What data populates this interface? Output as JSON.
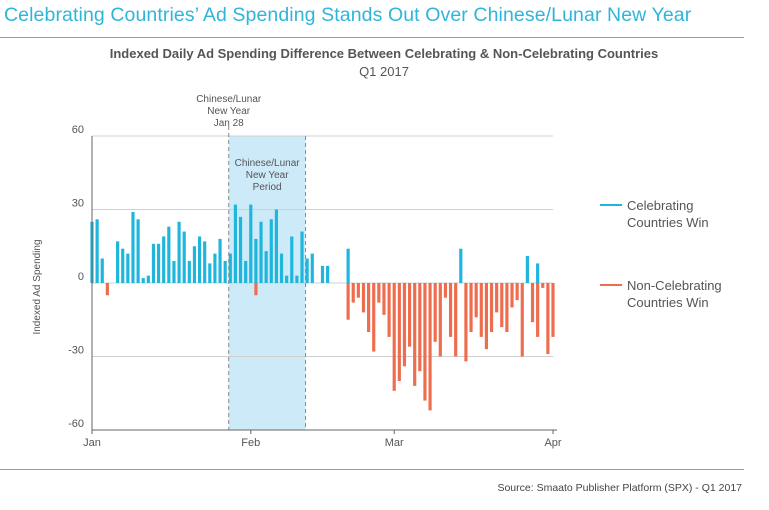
{
  "headline": "Celebrating Countries’ Ad Spending Stands Out Over Chinese/Lunar New Year",
  "source": "Source: Smaato Publisher Platform (SPX) - Q1 2017",
  "colors": {
    "celebrating": "#1eb6dc",
    "non_celebrating": "#ef6d4f",
    "highlight": "#cdeaf8",
    "headline": "#2fb5da"
  },
  "chart_data": {
    "type": "bar",
    "title": "Indexed Daily Ad Spending Difference Between Celebrating & Non-Celebrating Countries",
    "subtitle": "Q1 2017",
    "ylabel": "Indexed Ad Spending",
    "xlabel": "",
    "ylim": [
      -60,
      60
    ],
    "yticks": [
      60,
      30,
      0,
      -30,
      -60
    ],
    "grid": true,
    "x_tick_labels": [
      {
        "label": "Jan",
        "day": 1
      },
      {
        "label": "Feb",
        "day": 32
      },
      {
        "label": "Mar",
        "day": 60
      },
      {
        "label": "Apr",
        "day": 91
      }
    ],
    "legend_position": "right",
    "series": [
      {
        "name": "Celebrating Countries Win",
        "days": [
          1,
          2,
          3,
          4,
          6,
          7,
          8,
          9,
          10,
          11,
          12,
          13,
          14,
          15,
          16,
          17,
          18,
          19,
          20,
          21,
          22,
          23,
          24,
          25,
          26,
          27,
          28,
          29,
          30,
          31,
          32,
          33,
          34,
          35,
          36,
          37,
          38,
          39,
          40,
          41,
          42,
          43,
          44,
          46,
          47,
          48,
          49,
          51,
          52,
          54,
          58,
          73,
          86,
          88
        ],
        "values": [
          25,
          26,
          10,
          0,
          17,
          14,
          12,
          29,
          26,
          2,
          3,
          16,
          16,
          19,
          23,
          9,
          25,
          21,
          9,
          15,
          19,
          17,
          8,
          12,
          18,
          9,
          12,
          32,
          27,
          9,
          32,
          18,
          25,
          13,
          26,
          30,
          12,
          3,
          19,
          3,
          21,
          10,
          12,
          7,
          7,
          0,
          0,
          14,
          0,
          0,
          0,
          14,
          11,
          8
        ]
      },
      {
        "name": "Non-Celebrating Countries Win",
        "days": [
          4,
          33,
          51,
          52,
          53,
          54,
          55,
          56,
          57,
          58,
          59,
          60,
          61,
          62,
          63,
          64,
          65,
          66,
          67,
          68,
          69,
          70,
          71,
          72,
          74,
          75,
          76,
          77,
          78,
          79,
          80,
          81,
          82,
          83,
          84,
          85,
          87,
          88,
          89,
          90,
          91
        ],
        "values": [
          -5,
          -5,
          -15,
          -8,
          -6,
          -12,
          -20,
          -28,
          -8,
          -13,
          -22,
          -44,
          -40,
          -34,
          -26,
          -42,
          -36,
          -48,
          -52,
          -24,
          -30,
          -6,
          -22,
          -30,
          -32,
          -20,
          -14,
          -22,
          -27,
          -20,
          -12,
          -18,
          -20,
          -10,
          -7,
          -30,
          -16,
          -22,
          -2,
          -29,
          -22
        ]
      }
    ],
    "annotations": [
      {
        "label": "Chinese/Lunar New Year Jan 28",
        "lines": [
          "Chinese/Lunar",
          "New Year",
          "Jan 28"
        ],
        "day": 28
      },
      {
        "label": "Chinese/Lunar New Year Period",
        "lines": [
          "Chinese/Lunar",
          "New Year",
          "Period"
        ],
        "start_day": 28,
        "end_day": 43
      }
    ]
  }
}
